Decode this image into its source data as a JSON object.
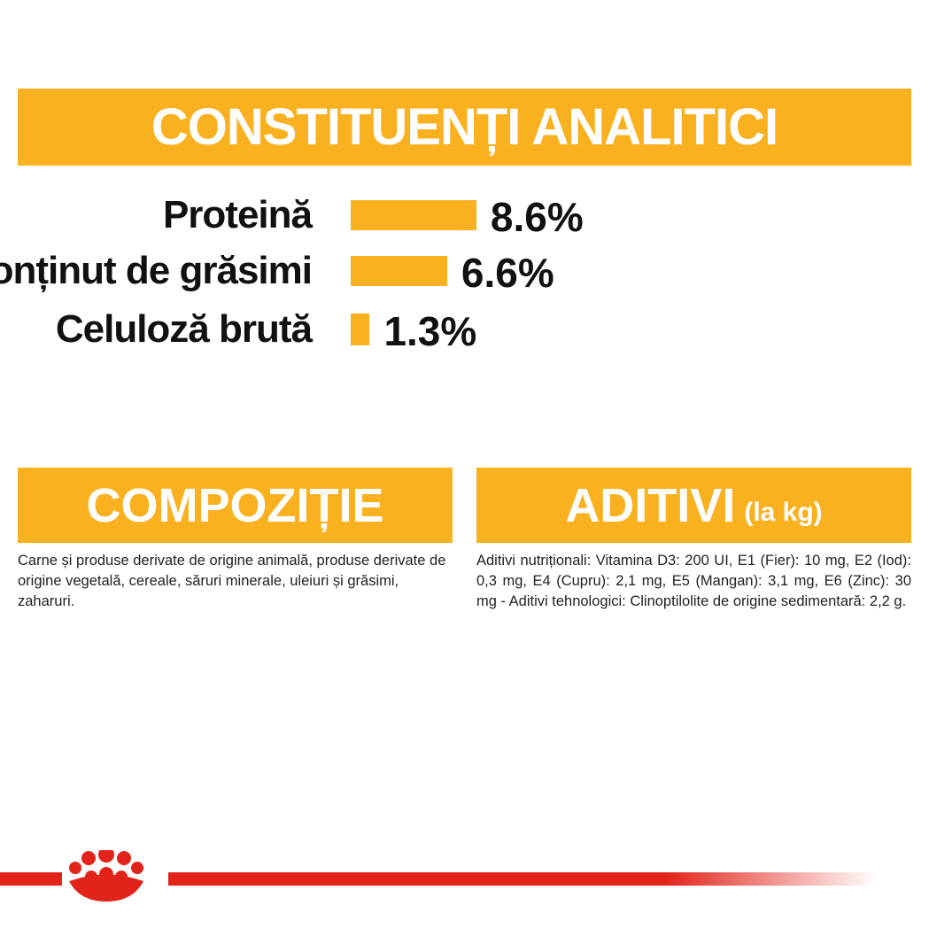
{
  "header": {
    "title": "CONSTITUENȚI ANALITICI"
  },
  "chart_data": {
    "type": "bar",
    "categories": [
      "Proteină",
      "Conținut de grăsimi",
      "Celuloză brută"
    ],
    "values": [
      8.6,
      6.6,
      1.3
    ],
    "value_labels": [
      "8.6%",
      "6.6%",
      "1.3%"
    ],
    "color": "#f9b120"
  },
  "composition": {
    "title": "COMPOZIȚIE",
    "text": "Carne și produse derivate de origine animală, produse derivate de origine vegetală, cereale, săruri minerale, uleiuri și grăsimi, zaharuri."
  },
  "additives": {
    "title": "ADITIVI",
    "unit": "(la kg)",
    "text": "Aditivi nutriționali: Vitamina D3: 200 UI, E1 (Fier): 10 mg, E2 (Iod): 0,3 mg, E4 (Cupru): 2,1 mg, E5 (Mangan): 3,1 mg, E6 (Zinc): 30 mg - Aditivi tehnologici: Clinoptilolite de origine sedimentară: 2,2 g."
  }
}
